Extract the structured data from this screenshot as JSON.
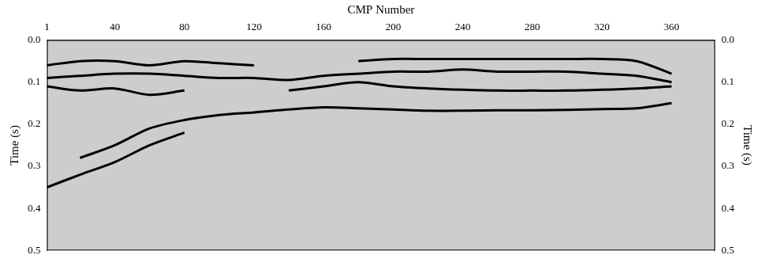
{
  "chart_data": {
    "type": "line",
    "x_label": "CMP Number",
    "y_label": "Time (s)",
    "y2_label": "Time (s)",
    "x": [
      1,
      20,
      40,
      60,
      80,
      100,
      120,
      140,
      160,
      180,
      200,
      220,
      240,
      260,
      280,
      300,
      320,
      340,
      360,
      380
    ],
    "series": [
      {
        "color": "#000000",
        "values": [
          null,
          0.28,
          0.25,
          0.21,
          0.19,
          0.178,
          0.172,
          0.165,
          0.16,
          0.162,
          0.165,
          0.168,
          0.168,
          0.167,
          0.167,
          0.166,
          0.164,
          0.162,
          0.15,
          null
        ]
      },
      {
        "color": "#000000",
        "values": [
          0.11,
          0.12,
          0.115,
          0.13,
          0.12,
          null,
          null,
          0.12,
          0.11,
          0.1,
          0.11,
          0.115,
          0.118,
          0.12,
          0.12,
          0.12,
          0.118,
          0.115,
          0.11,
          null
        ]
      },
      {
        "color": "#000000",
        "values": [
          0.09,
          0.085,
          0.08,
          0.08,
          0.085,
          0.09,
          0.09,
          0.095,
          0.085,
          0.08,
          0.075,
          0.075,
          0.07,
          0.075,
          0.075,
          0.075,
          0.08,
          0.085,
          0.1,
          null
        ]
      },
      {
        "color": "#000000",
        "values": [
          0.06,
          0.05,
          0.05,
          0.06,
          0.05,
          0.055,
          0.06,
          null,
          null,
          0.05,
          0.045,
          0.045,
          0.045,
          0.045,
          0.045,
          0.045,
          0.045,
          0.05,
          0.08,
          null
        ]
      },
      {
        "color": "#000000",
        "values": [
          0.35,
          0.32,
          0.29,
          0.25,
          0.22,
          null,
          null,
          null,
          null,
          null,
          null,
          null,
          null,
          null,
          null,
          null,
          null,
          null,
          null,
          null
        ]
      }
    ],
    "xlim": [
      1,
      385
    ],
    "xticks": [
      1,
      40,
      80,
      120,
      160,
      200,
      240,
      280,
      320,
      360
    ],
    "ylim": [
      0,
      0.5
    ],
    "yticks": [
      {
        "value": 0,
        "label": "0.0"
      },
      0.1,
      0.2,
      0.3,
      0.4,
      0.5
    ],
    "y2lim": [
      0,
      0.5
    ],
    "y2ticks": [
      {
        "value": 0,
        "label": "0.0"
      },
      0.1,
      0.2,
      0.3,
      0.4,
      0.5
    ],
    "grid": false,
    "line_style": "solid"
  }
}
